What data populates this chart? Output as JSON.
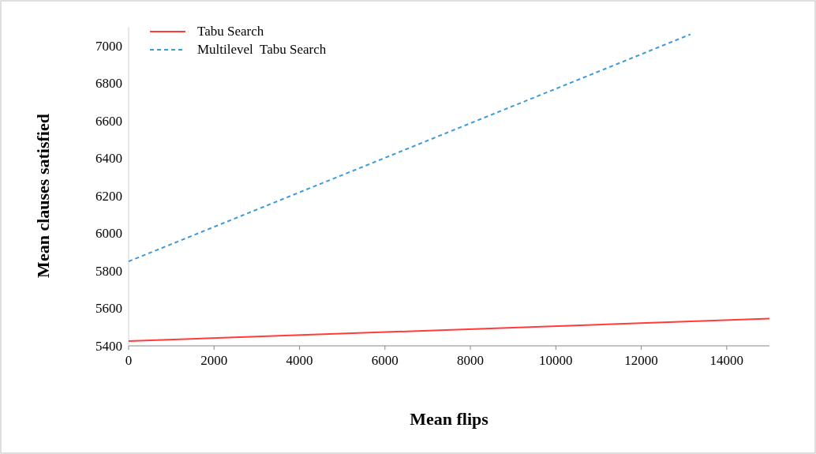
{
  "chart_data": {
    "type": "line",
    "xlabel": "Mean flips",
    "ylabel": "Mean clauses satisfied",
    "xlim": [
      0,
      15000
    ],
    "xticks": [
      0,
      2000,
      4000,
      6000,
      8000,
      10000,
      12000,
      14000
    ],
    "ylim": [
      5400,
      7100
    ],
    "yticks": [
      5400,
      5600,
      5800,
      6000,
      6200,
      6400,
      6600,
      6800,
      7000
    ],
    "legend": "top left",
    "grid": false,
    "series": [
      {
        "name": "Tabu Search",
        "color": "#ff3b3b",
        "line_style": "solid",
        "x": [
          0,
          15000
        ],
        "values": [
          5425,
          5545
        ]
      },
      {
        "name": "Multilevel  Tabu Search",
        "color": "#3d9ad8",
        "line_style": "dashed",
        "x": [
          0,
          13150
        ],
        "values": [
          5850,
          7060
        ]
      }
    ]
  }
}
